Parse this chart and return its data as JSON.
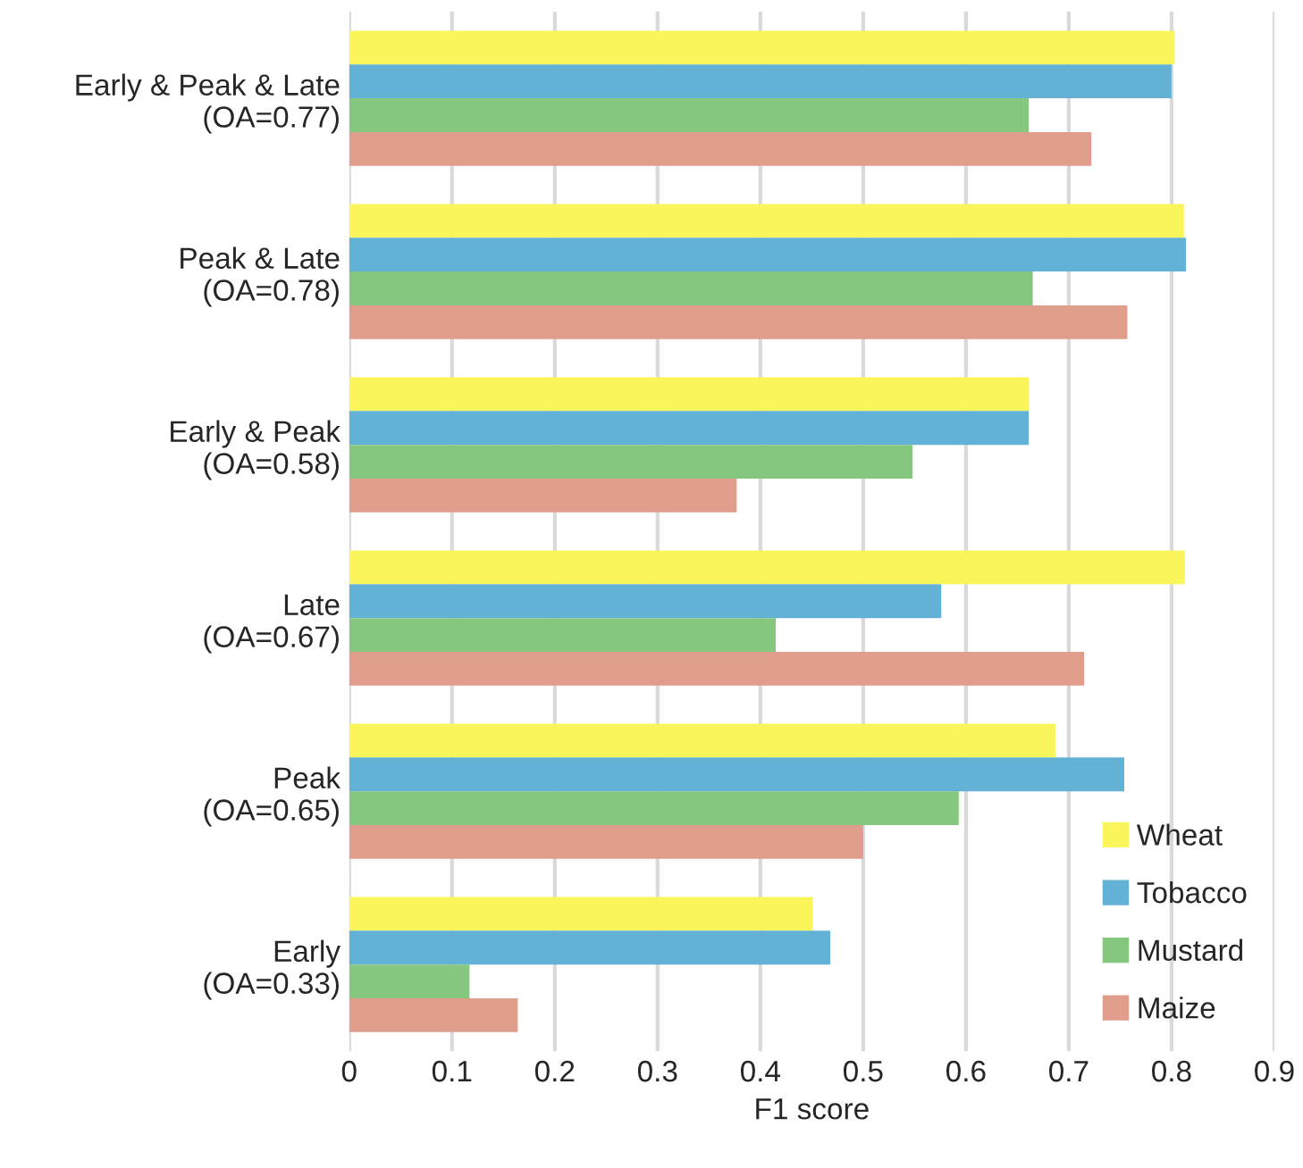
{
  "chart_data": {
    "type": "bar",
    "orientation": "horizontal",
    "xlabel": "F1 score",
    "categories": [
      "Early & Peak & Late\n(OA=0.77)",
      "Peak & Late\n(OA=0.78)",
      "Early & Peak\n(OA=0.58)",
      "Late\n(OA=0.67)",
      "Peak\n(OA=0.65)",
      "Early\n(OA=0.33)"
    ],
    "series": [
      {
        "name": "Wheat",
        "color": "#faf55a",
        "values": [
          0.803,
          0.812,
          0.661,
          0.813,
          0.687,
          0.451
        ]
      },
      {
        "name": "Tobacco",
        "color": "#63b2d5",
        "values": [
          0.8,
          0.814,
          0.661,
          0.576,
          0.754,
          0.468
        ]
      },
      {
        "name": "Mustard",
        "color": "#86c77f",
        "values": [
          0.661,
          0.665,
          0.548,
          0.415,
          0.593,
          0.117
        ]
      },
      {
        "name": "Maize",
        "color": "#e19d8b",
        "values": [
          0.722,
          0.757,
          0.377,
          0.715,
          0.5,
          0.164
        ]
      }
    ],
    "xlim": [
      0,
      0.9
    ],
    "xticks": [
      0,
      0.1,
      0.2,
      0.3,
      0.4,
      0.5,
      0.6,
      0.7,
      0.8,
      0.9
    ],
    "grid": "x",
    "legend": "bottom right"
  }
}
